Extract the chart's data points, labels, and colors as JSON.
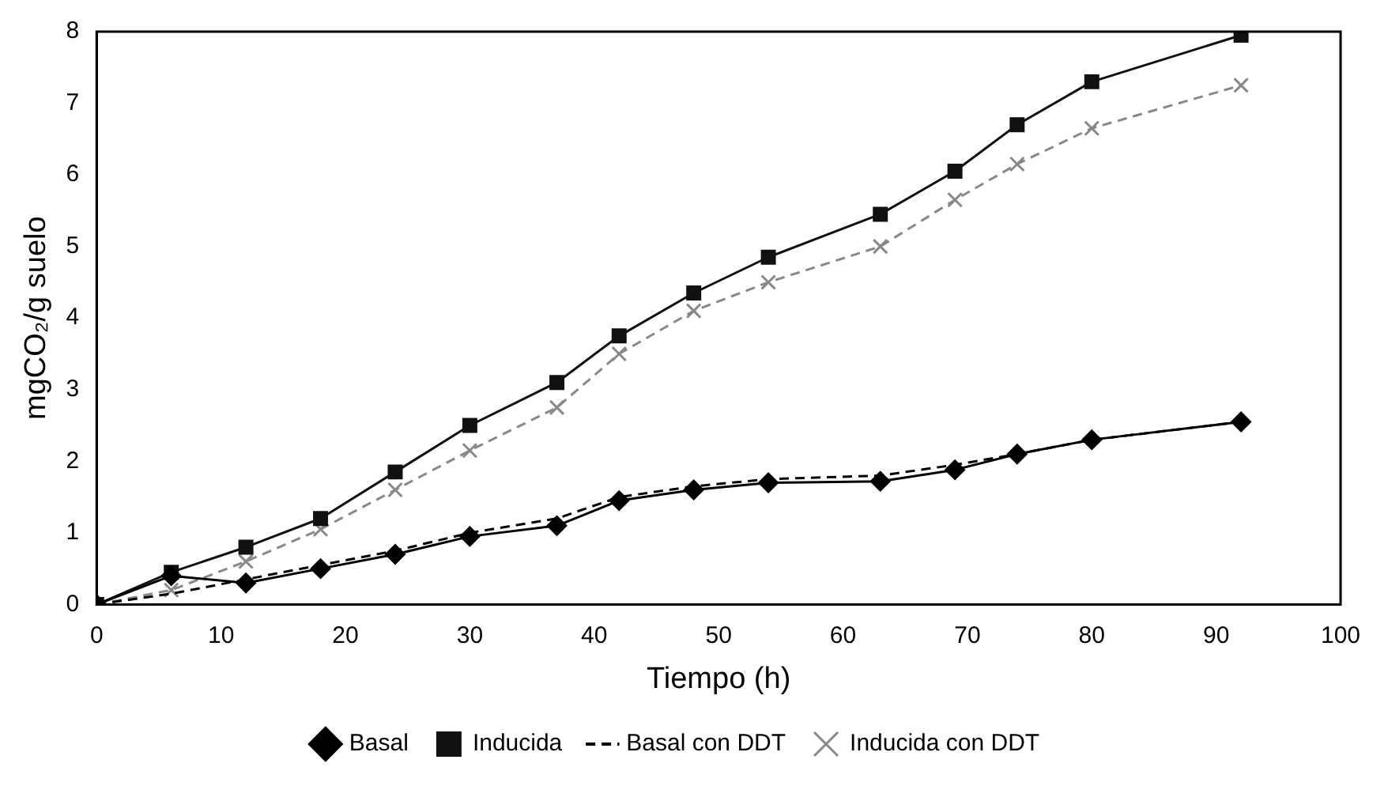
{
  "chart_data": {
    "type": "line",
    "xlabel": "Tiempo (h)",
    "ylabel": "mgCO₂/g suelo",
    "x": [
      0,
      6,
      12,
      18,
      24,
      30,
      37,
      42,
      48,
      54,
      63,
      69,
      74,
      80,
      92
    ],
    "xlim": [
      0,
      100
    ],
    "xticks": [
      0,
      10,
      20,
      30,
      40,
      50,
      60,
      70,
      80,
      90,
      100
    ],
    "ylim": [
      0,
      8
    ],
    "yticks": [
      0,
      1,
      2,
      3,
      4,
      5,
      6,
      7,
      8
    ],
    "grid": false,
    "legend": "bottom",
    "series": [
      {
        "name": "Basal",
        "color": "#000000",
        "marker": "diamond",
        "line_style": "solid",
        "values": [
          0,
          0.4,
          0.3,
          0.5,
          0.7,
          0.95,
          1.1,
          1.45,
          1.6,
          1.7,
          1.72,
          1.88,
          2.1,
          2.3,
          2.55
        ]
      },
      {
        "name": "Inducida",
        "color": "#111111",
        "marker": "square",
        "line_style": "solid",
        "values": [
          0,
          0.45,
          0.8,
          1.2,
          1.85,
          2.5,
          3.1,
          3.75,
          4.35,
          4.85,
          5.45,
          6.05,
          6.7,
          7.3,
          7.95
        ]
      },
      {
        "name": "Basal con DDT",
        "color": "#000000",
        "marker": "none",
        "line_style": "dashed",
        "values": [
          0,
          0.15,
          0.35,
          0.55,
          0.75,
          1.0,
          1.2,
          1.5,
          1.65,
          1.75,
          1.8,
          1.95,
          2.1,
          2.3,
          2.55
        ]
      },
      {
        "name": "Inducida con DDT",
        "color": "#888888",
        "marker": "cross",
        "line_style": "dashed",
        "values": [
          0,
          0.2,
          0.6,
          1.05,
          1.6,
          2.15,
          2.75,
          3.5,
          4.1,
          4.5,
          5.0,
          5.65,
          6.15,
          6.65,
          7.25
        ]
      }
    ]
  }
}
